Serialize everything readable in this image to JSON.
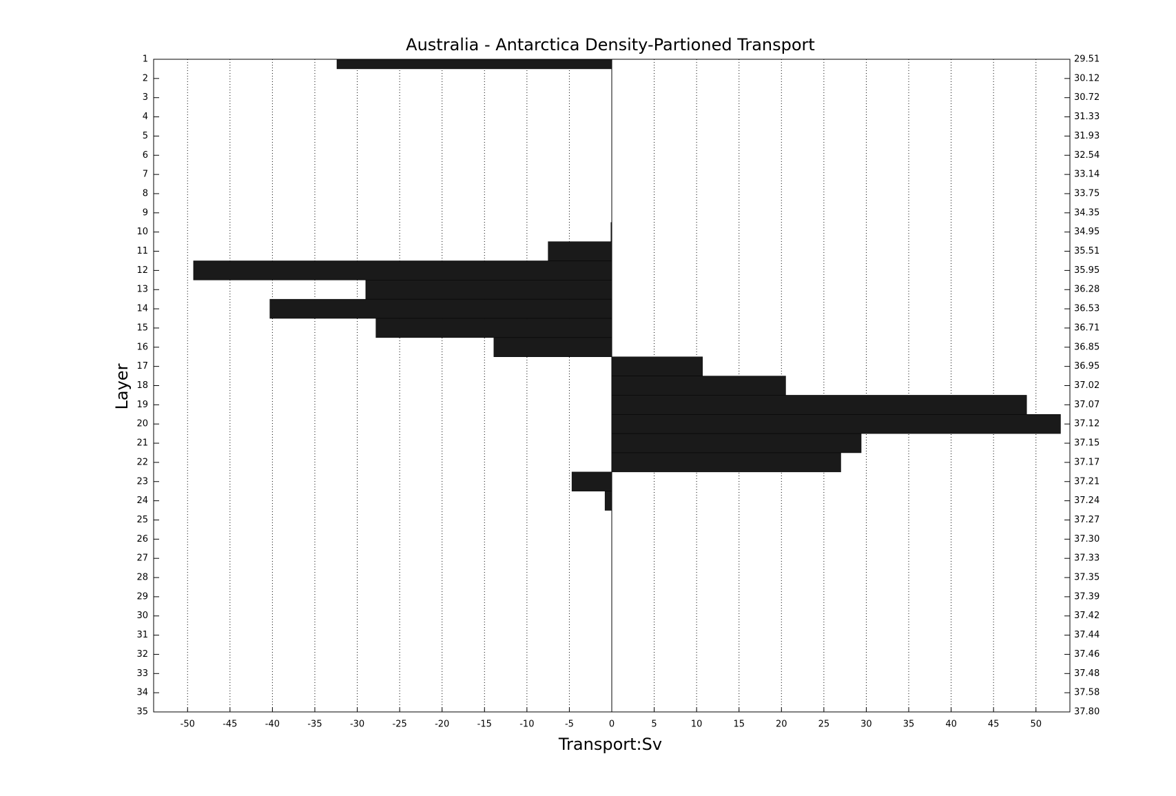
{
  "chart_data": {
    "type": "barh",
    "title": "Australia - Antarctica Density-Partioned Transport",
    "xlabel": "Transport:Sv",
    "ylabel": "Layer",
    "y": [
      1,
      2,
      3,
      4,
      5,
      6,
      7,
      8,
      9,
      10,
      11,
      12,
      13,
      14,
      15,
      16,
      17,
      18,
      19,
      20,
      21,
      22,
      23,
      24,
      25,
      26,
      27,
      28,
      29,
      30,
      31,
      32,
      33,
      34,
      35
    ],
    "values": [
      -32.4,
      0,
      0,
      0,
      0,
      0,
      0,
      0,
      0,
      -0.1,
      -7.5,
      -49.3,
      -29.0,
      -40.3,
      -27.8,
      -13.9,
      10.7,
      20.5,
      48.9,
      52.9,
      29.4,
      27.0,
      -4.7,
      -0.8,
      0,
      0,
      0,
      0,
      0,
      0,
      0,
      0,
      0,
      0,
      0
    ],
    "color": "#1a1a1a",
    "xlim": [
      -54,
      54
    ],
    "xticks": [
      -50,
      -45,
      -40,
      -35,
      -30,
      -25,
      -20,
      -15,
      -10,
      -5,
      0,
      5,
      10,
      15,
      20,
      25,
      30,
      35,
      40,
      45,
      50
    ],
    "ylim": [
      1,
      35
    ],
    "yticks": [
      1,
      2,
      3,
      4,
      5,
      6,
      7,
      8,
      9,
      10,
      11,
      12,
      13,
      14,
      15,
      16,
      17,
      18,
      19,
      20,
      21,
      22,
      23,
      24,
      25,
      26,
      27,
      28,
      29,
      30,
      31,
      32,
      33,
      34,
      35
    ],
    "y2_labels": [
      "29.51",
      "30.12",
      "30.72",
      "31.33",
      "31.93",
      "32.54",
      "33.14",
      "33.75",
      "34.35",
      "34.95",
      "35.51",
      "35.95",
      "36.28",
      "36.53",
      "36.71",
      "36.85",
      "36.95",
      "37.02",
      "37.07",
      "37.12",
      "37.15",
      "37.17",
      "37.21",
      "37.24",
      "37.27",
      "37.30",
      "37.33",
      "37.35",
      "37.39",
      "37.42",
      "37.44",
      "37.46",
      "37.48",
      "37.58",
      "37.80"
    ],
    "grid": true
  }
}
